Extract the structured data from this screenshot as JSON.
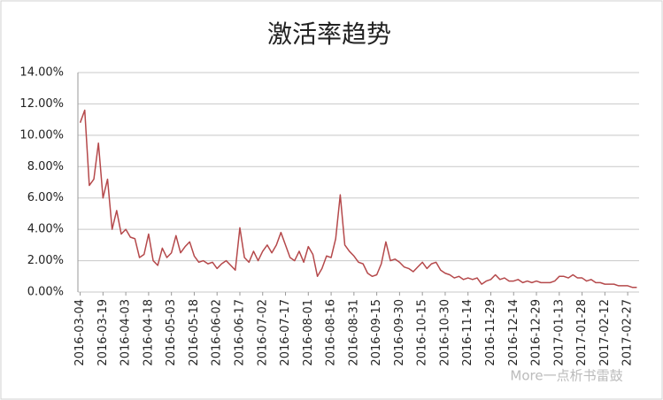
{
  "chart_data": {
    "type": "line",
    "title": "激活率趋势",
    "watermark": "More一点析书雷鼓",
    "categories": [
      "2016-03-04",
      null,
      null,
      null,
      null,
      "2016-03-19",
      null,
      null,
      null,
      null,
      "2016-04-03",
      null,
      null,
      null,
      null,
      "2016-04-18",
      null,
      null,
      null,
      null,
      "2016-05-03",
      null,
      null,
      null,
      null,
      "2016-05-18",
      null,
      null,
      null,
      null,
      "2016-06-02",
      null,
      null,
      null,
      null,
      "2016-06-17",
      null,
      null,
      null,
      null,
      "2016-07-02",
      null,
      null,
      null,
      null,
      "2016-07-17",
      null,
      null,
      null,
      null,
      "2016-08-01",
      null,
      null,
      null,
      null,
      "2016-08-16",
      null,
      null,
      null,
      null,
      "2016-08-31",
      null,
      null,
      null,
      null,
      "2016-09-15",
      null,
      null,
      null,
      null,
      "2016-09-30",
      null,
      null,
      null,
      null,
      "2016-10-15",
      null,
      null,
      null,
      null,
      "2016-10-30",
      null,
      null,
      null,
      null,
      "2016-11-14",
      null,
      null,
      null,
      null,
      "2016-11-29",
      null,
      null,
      null,
      null,
      "2016-12-14",
      null,
      null,
      null,
      null,
      "2016-12-29",
      null,
      null,
      null,
      null,
      "2017-01-13",
      null,
      null,
      null,
      null,
      "2017-01-28",
      null,
      null,
      null,
      null,
      "2017-02-12",
      null,
      null,
      null,
      null,
      "2017-02-27",
      null,
      null
    ],
    "values": [
      10.8,
      11.6,
      6.8,
      7.2,
      9.5,
      6.0,
      7.2,
      4.0,
      5.2,
      3.7,
      4.0,
      3.5,
      3.4,
      2.2,
      2.4,
      3.7,
      2.0,
      1.7,
      2.8,
      2.2,
      2.5,
      3.6,
      2.5,
      2.9,
      3.2,
      2.3,
      1.9,
      2.0,
      1.8,
      1.9,
      1.5,
      1.8,
      2.0,
      1.7,
      1.4,
      4.1,
      2.2,
      1.9,
      2.6,
      2.0,
      2.6,
      3.0,
      2.5,
      3.0,
      3.8,
      3.0,
      2.2,
      2.0,
      2.6,
      1.9,
      2.9,
      2.4,
      1.0,
      1.5,
      2.3,
      2.2,
      3.4,
      6.2,
      3.0,
      2.6,
      2.3,
      1.9,
      1.8,
      1.2,
      1.0,
      1.1,
      1.8,
      3.2,
      2.0,
      2.1,
      1.9,
      1.6,
      1.5,
      1.3,
      1.6,
      1.9,
      1.5,
      1.8,
      1.9,
      1.4,
      1.2,
      1.1,
      0.9,
      1.0,
      0.8,
      0.9,
      0.8,
      0.9,
      0.5,
      0.7,
      0.8,
      1.1,
      0.8,
      0.9,
      0.7,
      0.7,
      0.8,
      0.6,
      0.7,
      0.6,
      0.7,
      0.6,
      0.6,
      0.6,
      0.7,
      1.0,
      1.0,
      0.9,
      1.1,
      0.9,
      0.9,
      0.7,
      0.8,
      0.6,
      0.6,
      0.5,
      0.5,
      0.5,
      0.4,
      0.4,
      0.4,
      0.3,
      0.3
    ],
    "color": "#b5494b",
    "ylim": [
      0,
      14
    ],
    "yticks": [
      {
        "value": 0,
        "label": "0.00%"
      },
      {
        "value": 2,
        "label": "2.00%"
      },
      {
        "value": 4,
        "label": "4.00%"
      },
      {
        "value": 6,
        "label": "6.00%"
      },
      {
        "value": 8,
        "label": "8.00%"
      },
      {
        "value": 10,
        "label": "10.00%"
      },
      {
        "value": 12,
        "label": "12.00%"
      },
      {
        "value": 14,
        "label": "14.00%"
      }
    ],
    "grid": true
  }
}
